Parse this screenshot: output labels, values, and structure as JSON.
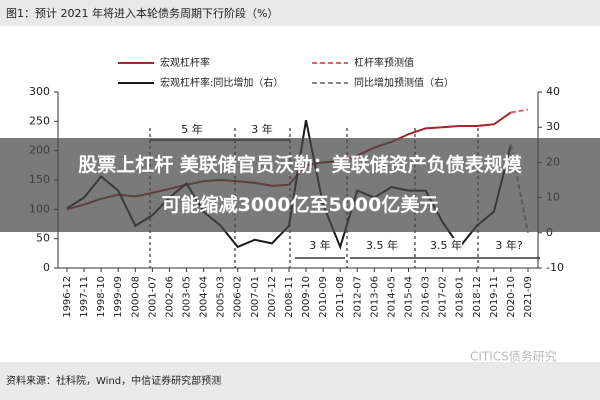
{
  "chart_data": {
    "type": "line",
    "title": "图1：预计 2021 年将进入本轮债务周期下行阶段（%）",
    "source": "资料来源：社科院，Wind，中信证券研究部预测",
    "watermark": "CITICS债务研究",
    "categories": [
      "1996-12",
      "1997-11",
      "1998-10",
      "1999-09",
      "2000-08",
      "2001-07",
      "2002-06",
      "2003-05",
      "2004-04",
      "2005-03",
      "2006-02",
      "2007-01",
      "2007-12",
      "2008-11",
      "2009-10",
      "2010-09",
      "2011-08",
      "2012-07",
      "2013-06",
      "2014-05",
      "2015-04",
      "2016-03",
      "2017-02",
      "2018-01",
      "2018-12",
      "2019-11",
      "2020-10",
      "2021-09"
    ],
    "series": [
      {
        "name": "宏观杠杆率",
        "color": "#a3262b",
        "dashed": false,
        "values": [
          100,
          108,
          118,
          125,
          122,
          128,
          135,
          142,
          148,
          150,
          148,
          145,
          140,
          142,
          175,
          180,
          182,
          192,
          205,
          215,
          228,
          238,
          240,
          242,
          242,
          245,
          265,
          null
        ]
      },
      {
        "name": "杠杆率预测值",
        "color": "#e06166",
        "dashed": true,
        "values": [
          null,
          null,
          null,
          null,
          null,
          null,
          null,
          null,
          null,
          null,
          null,
          null,
          null,
          null,
          null,
          null,
          null,
          null,
          null,
          null,
          null,
          null,
          null,
          null,
          null,
          null,
          265,
          270
        ]
      },
      {
        "name": "宏观杠杆率:同比增加（右）",
        "color": "#1a1a1a",
        "dashed": false,
        "axis": "y2",
        "values": [
          7,
          10,
          16,
          12,
          2,
          5,
          10,
          14,
          6,
          2,
          -4,
          -2,
          -3,
          2,
          32,
          8,
          -4,
          12,
          10,
          13,
          12,
          12,
          3,
          -4,
          2,
          6,
          25,
          null
        ]
      },
      {
        "name": "同比增加预测值（右）",
        "color": "#8a8a8a",
        "dashed": true,
        "axis": "y2",
        "values": [
          null,
          null,
          null,
          null,
          null,
          null,
          null,
          null,
          null,
          null,
          null,
          null,
          null,
          null,
          null,
          null,
          null,
          null,
          null,
          null,
          null,
          null,
          null,
          null,
          null,
          null,
          25,
          0
        ]
      }
    ],
    "ylim": [
      0,
      300
    ],
    "yticks": [
      0,
      50,
      100,
      150,
      200,
      250,
      300
    ],
    "y2lim": [
      -10,
      40
    ],
    "y2ticks": [
      -10,
      0,
      10,
      20,
      30,
      40
    ],
    "annotations": [
      "5 年",
      "3 年",
      "3 年",
      "3.5 年",
      "3.5 年",
      "3 年?"
    ]
  },
  "overlay": {
    "lines": [
      "股票上杠杆 美联储官员沃勒：美联储资产负债表规模",
      "可能缩减3000亿至5000亿美元"
    ]
  }
}
